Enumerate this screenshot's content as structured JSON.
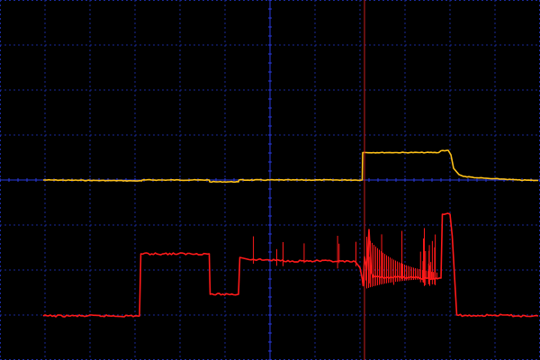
{
  "chart_data": {
    "type": "line",
    "title": "",
    "xlabel": "",
    "ylabel": "",
    "grid": true,
    "legend": "none",
    "x_divisions": 12,
    "y_divisions": 8,
    "xlim": [
      -6,
      6
    ],
    "ylim": [
      -4,
      4
    ],
    "colors": {
      "background": "#000000",
      "grid": "#1a2a9a",
      "axis": "#2a3ae0",
      "cursor": "#c81e1e"
    },
    "cursor_x": 2.1,
    "series": [
      {
        "color": "#ffc21a",
        "points": [
          [
            -5.04,
            0.0
          ],
          [
            -3.9,
            -0.01
          ],
          [
            -2.85,
            -0.02
          ],
          [
            -2.84,
            0.0
          ],
          [
            -1.35,
            0.0
          ],
          [
            -1.34,
            -0.04
          ],
          [
            -0.7,
            -0.04
          ],
          [
            -0.69,
            0.0
          ],
          [
            2.05,
            0.0
          ],
          [
            2.06,
            0.61
          ],
          [
            3.75,
            0.61
          ],
          [
            3.8,
            0.65
          ],
          [
            3.96,
            0.66
          ],
          [
            4.02,
            0.56
          ],
          [
            4.08,
            0.26
          ],
          [
            4.2,
            0.12
          ],
          [
            4.3,
            0.08
          ],
          [
            4.6,
            0.05
          ],
          [
            4.9,
            0.03
          ],
          [
            5.2,
            0.02
          ],
          [
            5.5,
            0.0
          ],
          [
            5.96,
            -0.01
          ]
        ]
      },
      {
        "color": "#ff1a1a",
        "points": [
          [
            -5.04,
            -3.02
          ],
          [
            -2.9,
            -3.02
          ],
          [
            -2.87,
            -1.64
          ],
          [
            -1.35,
            -1.64
          ],
          [
            -1.33,
            -2.54
          ],
          [
            -0.7,
            -2.54
          ],
          [
            -0.67,
            -1.72
          ],
          [
            -0.5,
            -1.76
          ],
          [
            0.0,
            -1.78
          ],
          [
            0.5,
            -1.8
          ],
          [
            1.0,
            -1.8
          ],
          [
            1.5,
            -1.81
          ],
          [
            1.9,
            -1.82
          ],
          [
            2.0,
            -1.95
          ],
          [
            2.05,
            -2.2
          ],
          [
            2.07,
            -2.35
          ],
          [
            2.1,
            -1.7
          ],
          [
            2.15,
            -2.0
          ],
          [
            2.2,
            -1.1
          ],
          [
            2.25,
            -2.05
          ],
          [
            2.3,
            -2.16
          ],
          [
            2.7,
            -2.16
          ],
          [
            3.2,
            -2.17
          ],
          [
            3.6,
            -2.2
          ],
          [
            3.8,
            -2.18
          ],
          [
            3.83,
            -0.76
          ],
          [
            4.0,
            -0.76
          ],
          [
            4.05,
            -1.25
          ],
          [
            4.15,
            -3.0
          ],
          [
            4.5,
            -3.02
          ],
          [
            5.0,
            -3.0
          ],
          [
            5.5,
            -3.02
          ],
          [
            5.96,
            -3.02
          ]
        ]
      }
    ]
  }
}
